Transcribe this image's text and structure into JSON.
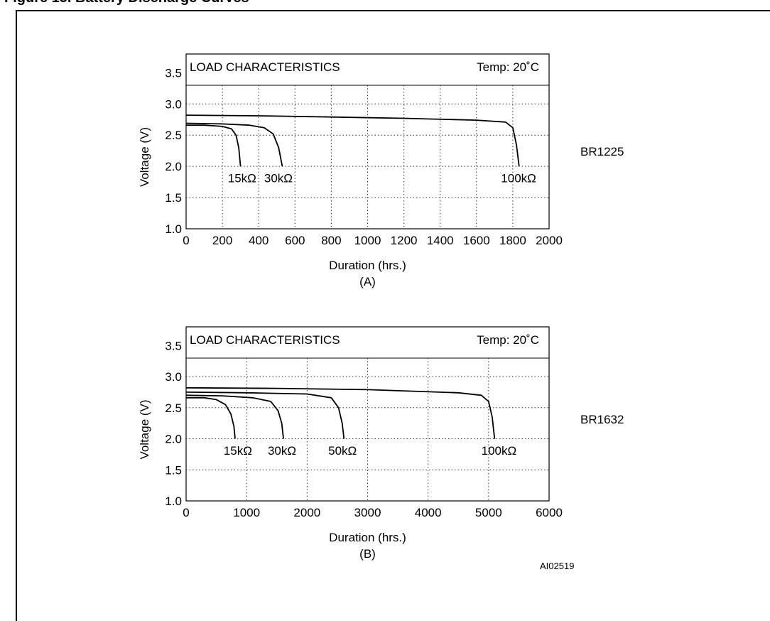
{
  "figure": {
    "caption": "Figure 13. Battery Discharge Curves",
    "code": "AI02519"
  },
  "chart_data": [
    {
      "type": "line",
      "title": "LOAD CHARACTERISTICS",
      "temp_label": "Temp: 20˚C",
      "xlabel": "Duration (hrs.)",
      "ylabel": "Voltage (V)",
      "sublabel": "(A)",
      "battery": "BR1225",
      "xlim": [
        0,
        2000
      ],
      "ylim": [
        1.0,
        3.8
      ],
      "xticks": [
        "0",
        "200",
        "400",
        "600",
        "800",
        "1000",
        "1200",
        "1400",
        "1600",
        "1800",
        "2000"
      ],
      "xtick_values": [
        0,
        200,
        400,
        600,
        800,
        1000,
        1200,
        1400,
        1600,
        1800,
        2000
      ],
      "yticks": [
        "1.0",
        "1.5",
        "2.0",
        "2.5",
        "3.0",
        "3.5"
      ],
      "ytick_values": [
        1.0,
        1.5,
        2.0,
        2.5,
        3.0,
        3.5
      ],
      "grid": true,
      "series": [
        {
          "name": "15kΩ",
          "x": [
            0,
            100,
            200,
            250,
            275,
            290,
            300
          ],
          "y": [
            2.66,
            2.66,
            2.64,
            2.6,
            2.5,
            2.3,
            2.0
          ],
          "label_at": [
            230,
            1.95
          ]
        },
        {
          "name": "30kΩ",
          "x": [
            0,
            200,
            350,
            430,
            480,
            510,
            530
          ],
          "y": [
            2.69,
            2.68,
            2.66,
            2.62,
            2.52,
            2.3,
            2.0
          ],
          "label_at": [
            430,
            1.95
          ]
        },
        {
          "name": "100kΩ",
          "x": [
            0,
            400,
            800,
            1200,
            1600,
            1760,
            1800,
            1820,
            1835
          ],
          "y": [
            2.82,
            2.81,
            2.79,
            2.77,
            2.74,
            2.71,
            2.62,
            2.35,
            2.0
          ],
          "label_at": [
            1735,
            1.95
          ]
        }
      ]
    },
    {
      "type": "line",
      "title": "LOAD CHARACTERISTICS",
      "temp_label": "Temp: 20˚C",
      "xlabel": "Duration (hrs.)",
      "ylabel": "Voltage (V)",
      "sublabel": "(B)",
      "battery": "BR1632",
      "xlim": [
        0,
        6000
      ],
      "ylim": [
        1.0,
        3.8
      ],
      "xticks": [
        "0",
        "1000",
        "2000",
        "3000",
        "4000",
        "5000",
        "6000"
      ],
      "xtick_values": [
        0,
        1000,
        2000,
        3000,
        4000,
        5000,
        6000
      ],
      "yticks": [
        "1.0",
        "1.5",
        "2.0",
        "2.5",
        "3.0",
        "3.5"
      ],
      "ytick_values": [
        1.0,
        1.5,
        2.0,
        2.5,
        3.0,
        3.5
      ],
      "grid": true,
      "series": [
        {
          "name": "15kΩ",
          "x": [
            0,
            300,
            500,
            650,
            740,
            790,
            810
          ],
          "y": [
            2.66,
            2.66,
            2.63,
            2.55,
            2.4,
            2.2,
            2.0
          ],
          "label_at": [
            620,
            1.95
          ]
        },
        {
          "name": "30kΩ",
          "x": [
            0,
            600,
            1100,
            1400,
            1520,
            1580,
            1610
          ],
          "y": [
            2.7,
            2.69,
            2.66,
            2.6,
            2.45,
            2.25,
            2.0
          ],
          "label_at": [
            1350,
            1.95
          ]
        },
        {
          "name": "50kΩ",
          "x": [
            0,
            1000,
            2000,
            2400,
            2520,
            2580,
            2610
          ],
          "y": [
            2.75,
            2.74,
            2.72,
            2.66,
            2.5,
            2.25,
            2.0
          ],
          "label_at": [
            2350,
            1.95
          ]
        },
        {
          "name": "100kΩ",
          "x": [
            0,
            1500,
            3000,
            4500,
            4880,
            5000,
            5060,
            5100
          ],
          "y": [
            2.82,
            2.81,
            2.79,
            2.74,
            2.7,
            2.6,
            2.35,
            2.0
          ],
          "label_at": [
            4880,
            1.95
          ]
        }
      ]
    }
  ]
}
